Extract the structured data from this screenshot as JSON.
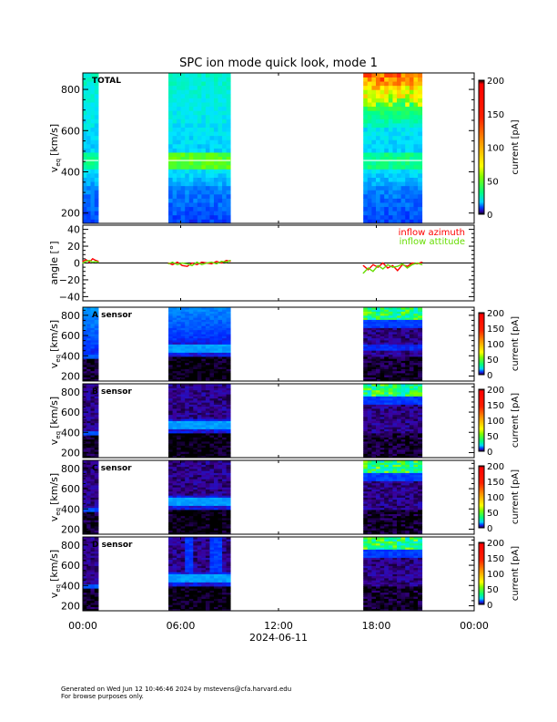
{
  "chart_data": {
    "type": "heatmap",
    "title": "SPC ion mode quick look, mode 1",
    "x_axis": {
      "tick_labels": [
        "00:00",
        "06:00",
        "12:00",
        "18:00",
        "00:00"
      ],
      "tick_hours": [
        0,
        6,
        12,
        18,
        24
      ],
      "date_label": "2024-06-11",
      "range_hours": [
        0,
        24
      ]
    },
    "data_intervals_hours": [
      [
        0.0,
        0.95
      ],
      [
        5.25,
        9.05
      ],
      [
        17.2,
        20.8
      ]
    ],
    "panels": [
      {
        "id": "total",
        "label": "TOTAL",
        "ylabel": "v_eq [km/s]",
        "ylabel_main": "v",
        "ylabel_sub": "eq",
        "ylabel_units": "[km/s]",
        "yticks": [
          200,
          400,
          600,
          800
        ],
        "ytick_labels": [
          "200",
          "400",
          "600",
          "800"
        ],
        "ylim": [
          150,
          880
        ],
        "colorbar": {
          "label": "current [pA]",
          "ticks": [
            0,
            50,
            100,
            150,
            200
          ],
          "tick_labels": [
            "0",
            "50",
            "100",
            "150",
            "200"
          ],
          "range": [
            0,
            200
          ]
        },
        "peak_velocity_kms": [
          430,
          470,
          460
        ],
        "description_levels": "low-velocity channels blue, mid 400-500 green, high-velocity yellow/red in third interval"
      },
      {
        "id": "angle",
        "ylabel": "angle [°]",
        "yticks": [
          -40,
          -20,
          0,
          20,
          40
        ],
        "ytick_labels": [
          "−40",
          "−20",
          "0",
          "20",
          "40"
        ],
        "ylim": [
          -45,
          45
        ],
        "legend": [
          "inflow azimuth",
          "inflow attitude"
        ],
        "series": [
          {
            "name": "inflow azimuth",
            "color": "#ff0000",
            "x": [
              0.0,
              0.2,
              0.4,
              0.6,
              0.8,
              0.95,
              5.25,
              5.5,
              5.8,
              6.1,
              6.4,
              6.7,
              7.0,
              7.3,
              7.6,
              7.9,
              8.2,
              8.5,
              8.8,
              9.05,
              17.2,
              17.5,
              17.8,
              18.1,
              18.4,
              18.7,
              19.0,
              19.3,
              19.6,
              19.9,
              20.2,
              20.5,
              20.8
            ],
            "y": [
              2,
              4,
              1,
              5,
              3,
              2,
              0,
              -2,
              1,
              -3,
              -4,
              0,
              -2,
              1,
              0,
              -1,
              2,
              0,
              3,
              2,
              -3,
              -8,
              -2,
              -5,
              0,
              -6,
              -3,
              -9,
              -2,
              -4,
              0,
              -1,
              1
            ]
          },
          {
            "name": "inflow attitude",
            "color": "#66dd00",
            "x": [
              0.0,
              0.2,
              0.4,
              0.6,
              0.8,
              0.95,
              5.25,
              5.5,
              5.8,
              6.1,
              6.4,
              6.7,
              7.0,
              7.3,
              7.6,
              7.9,
              8.2,
              8.5,
              8.8,
              9.05,
              17.2,
              17.5,
              17.8,
              18.1,
              18.4,
              18.7,
              19.0,
              19.3,
              19.6,
              19.9,
              20.2,
              20.5,
              20.8
            ],
            "y": [
              0,
              2,
              3,
              1,
              2,
              1,
              -1,
              1,
              -2,
              0,
              -1,
              -3,
              1,
              -2,
              0,
              1,
              -1,
              2,
              1,
              3,
              -12,
              -6,
              -10,
              -3,
              -7,
              -2,
              -5,
              -4,
              -1,
              -6,
              -2,
              0,
              -2
            ]
          }
        ],
        "zero_line": 0
      },
      {
        "id": "A",
        "label": "A sensor",
        "ylabel_main": "v",
        "ylabel_sub": "eq",
        "ylabel_units": "[km/s]",
        "yticks": [
          200,
          400,
          600,
          800
        ],
        "ytick_labels": [
          "200",
          "400",
          "600",
          "800"
        ],
        "ylim": [
          150,
          880
        ],
        "colorbar": {
          "label": "current [pA]",
          "ticks": [
            0,
            50,
            100,
            150,
            200
          ],
          "tick_labels": [
            "0",
            "50",
            "100",
            "150",
            "200"
          ],
          "range": [
            0,
            200
          ]
        }
      },
      {
        "id": "B",
        "label": "B sensor",
        "ylabel_main": "v",
        "ylabel_sub": "eq",
        "ylabel_units": "[km/s]",
        "yticks": [
          200,
          400,
          600,
          800
        ],
        "ytick_labels": [
          "200",
          "400",
          "600",
          "800"
        ],
        "ylim": [
          150,
          880
        ],
        "colorbar": {
          "label": "current [pA]",
          "ticks": [
            0,
            50,
            100,
            150,
            200
          ],
          "tick_labels": [
            "0",
            "50",
            "100",
            "150",
            "200"
          ],
          "range": [
            0,
            200
          ]
        }
      },
      {
        "id": "C",
        "label": "C sensor",
        "ylabel_main": "v",
        "ylabel_sub": "eq",
        "ylabel_units": "[km/s]",
        "yticks": [
          200,
          400,
          600,
          800
        ],
        "ytick_labels": [
          "200",
          "400",
          "600",
          "800"
        ],
        "ylim": [
          150,
          880
        ],
        "colorbar": {
          "label": "current [pA]",
          "ticks": [
            0,
            50,
            100,
            150,
            200
          ],
          "tick_labels": [
            "0",
            "50",
            "100",
            "150",
            "200"
          ],
          "range": [
            0,
            200
          ]
        }
      },
      {
        "id": "D",
        "label": "D sensor",
        "ylabel_main": "v",
        "ylabel_sub": "eq",
        "ylabel_units": "[km/s]",
        "yticks": [
          200,
          400,
          600,
          800
        ],
        "ytick_labels": [
          "200",
          "400",
          "600",
          "800"
        ],
        "ylim": [
          150,
          880
        ],
        "colorbar": {
          "label": "current [pA]",
          "ticks": [
            0,
            50,
            100,
            150,
            200
          ],
          "tick_labels": [
            "0",
            "50",
            "100",
            "150",
            "200"
          ],
          "range": [
            0,
            200
          ]
        }
      }
    ]
  },
  "footer": {
    "line1": "Generated on Wed Jun 12 10:46:46 2024 by mstevens@cfa.harvard.edu",
    "line2": "For browse purposes only."
  },
  "colors": {
    "azimuth": "#ff0000",
    "attitude": "#66dd00",
    "axis": "#000000"
  }
}
